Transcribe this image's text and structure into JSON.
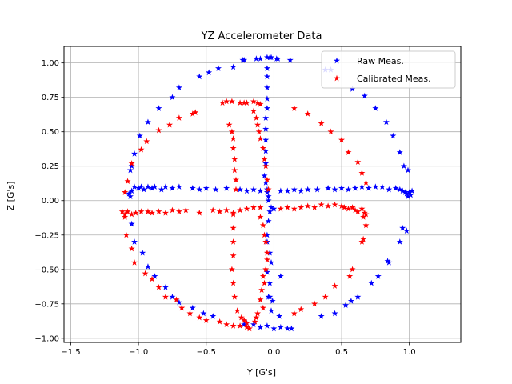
{
  "chart_data": {
    "type": "scatter",
    "title": "YZ Accelerometer Data",
    "xlabel": "Y [G's]",
    "ylabel": "Z [G's]",
    "xlim": [
      -1.55,
      1.38
    ],
    "ylim": [
      -1.03,
      1.12
    ],
    "xticks": [
      -1.5,
      -1.0,
      -0.5,
      0.0,
      0.5,
      1.0
    ],
    "xtick_labels": [
      "−1.5",
      "−1.0",
      "−0.5",
      "0.0",
      "0.5",
      "1.0"
    ],
    "yticks": [
      -1.0,
      -0.75,
      -0.5,
      -0.25,
      0.0,
      0.25,
      0.5,
      0.75,
      1.0
    ],
    "ytick_labels": [
      "−1.00",
      "−0.75",
      "−0.50",
      "−0.25",
      "0.00",
      "0.25",
      "0.50",
      "0.75",
      "1.00"
    ],
    "grid": true,
    "legend_position": "top-right",
    "marker": "star",
    "series": [
      {
        "name": "Raw Meas.",
        "color": "#0000ff",
        "points": [
          [
            -0.23,
            1.02
          ],
          [
            -0.22,
            1.02
          ],
          [
            -0.13,
            1.03
          ],
          [
            -0.1,
            1.03
          ],
          [
            -0.05,
            1.04
          ],
          [
            -0.03,
            1.04
          ],
          [
            -0.02,
            1.04
          ],
          [
            0.02,
            1.03
          ],
          [
            0.03,
            1.03
          ],
          [
            0.12,
            1.02
          ],
          [
            -0.3,
            0.97
          ],
          [
            -0.41,
            0.96
          ],
          [
            -0.48,
            0.93
          ],
          [
            -0.55,
            0.9
          ],
          [
            -0.7,
            0.82
          ],
          [
            -0.75,
            0.75
          ],
          [
            -0.85,
            0.67
          ],
          [
            -0.93,
            0.57
          ],
          [
            -0.99,
            0.47
          ],
          [
            -1.03,
            0.34
          ],
          [
            -1.05,
            0.25
          ],
          [
            -1.06,
            0.22
          ],
          [
            0.38,
            0.95
          ],
          [
            0.42,
            0.95
          ],
          [
            0.58,
            0.81
          ],
          [
            0.67,
            0.76
          ],
          [
            0.75,
            0.67
          ],
          [
            0.83,
            0.57
          ],
          [
            0.88,
            0.47
          ],
          [
            0.93,
            0.35
          ],
          [
            0.96,
            0.25
          ],
          [
            0.99,
            0.22
          ],
          [
            -0.05,
            0.96
          ],
          [
            -0.05,
            0.9
          ],
          [
            -0.05,
            0.82
          ],
          [
            -0.05,
            0.74
          ],
          [
            -0.05,
            0.67
          ],
          [
            -0.06,
            0.6
          ],
          [
            -0.06,
            0.52
          ],
          [
            -0.06,
            0.44
          ],
          [
            -0.06,
            0.36
          ],
          [
            -0.06,
            0.27
          ],
          [
            -0.07,
            0.18
          ],
          [
            -0.06,
            0.13
          ],
          [
            -0.05,
            0.08
          ],
          [
            -0.05,
            0.06
          ],
          [
            -0.04,
            0.03
          ],
          [
            -0.04,
            0.0
          ],
          [
            -1.0,
            0.09
          ],
          [
            -0.98,
            0.1
          ],
          [
            -0.96,
            0.08
          ],
          [
            -0.93,
            0.1
          ],
          [
            -0.9,
            0.09
          ],
          [
            -0.88,
            0.1
          ],
          [
            -0.83,
            0.08
          ],
          [
            -0.8,
            0.1
          ],
          [
            -0.75,
            0.09
          ],
          [
            -0.7,
            0.1
          ],
          [
            -0.6,
            0.09
          ],
          [
            -0.55,
            0.08
          ],
          [
            -0.5,
            0.09
          ],
          [
            -0.43,
            0.08
          ],
          [
            -0.35,
            0.09
          ],
          [
            -0.25,
            0.08
          ],
          [
            -0.2,
            0.07
          ],
          [
            -0.15,
            0.08
          ],
          [
            -0.1,
            0.07
          ],
          [
            0.05,
            0.07
          ],
          [
            0.1,
            0.07
          ],
          [
            0.15,
            0.08
          ],
          [
            0.2,
            0.07
          ],
          [
            0.25,
            0.08
          ],
          [
            0.32,
            0.08
          ],
          [
            0.4,
            0.09
          ],
          [
            0.45,
            0.08
          ],
          [
            0.5,
            0.09
          ],
          [
            0.55,
            0.08
          ],
          [
            0.6,
            0.09
          ],
          [
            0.65,
            0.1
          ],
          [
            0.7,
            0.09
          ],
          [
            0.75,
            0.1
          ],
          [
            0.8,
            0.1
          ],
          [
            0.85,
            0.08
          ],
          [
            0.9,
            0.09
          ],
          [
            0.93,
            0.08
          ],
          [
            0.95,
            0.07
          ],
          [
            0.97,
            0.06
          ],
          [
            0.98,
            0.05
          ],
          [
            1.0,
            0.06
          ],
          [
            1.02,
            0.07
          ],
          [
            1.01,
            0.04
          ],
          [
            0.99,
            0.03
          ],
          [
            -1.05,
            0.07
          ],
          [
            -1.07,
            0.05
          ],
          [
            -1.06,
            0.03
          ],
          [
            -1.03,
            0.1
          ],
          [
            -1.05,
            -0.17
          ],
          [
            -1.03,
            -0.3
          ],
          [
            -0.97,
            -0.38
          ],
          [
            -0.93,
            -0.48
          ],
          [
            -0.88,
            -0.55
          ],
          [
            -0.8,
            -0.63
          ],
          [
            -0.75,
            -0.7
          ],
          [
            -0.7,
            -0.74
          ],
          [
            -0.6,
            -0.78
          ],
          [
            -0.52,
            -0.82
          ],
          [
            -0.45,
            -0.84
          ],
          [
            0.95,
            -0.2
          ],
          [
            0.98,
            -0.22
          ],
          [
            0.93,
            -0.3
          ],
          [
            0.85,
            -0.45
          ],
          [
            0.84,
            -0.44
          ],
          [
            0.77,
            -0.55
          ],
          [
            0.72,
            -0.6
          ],
          [
            0.62,
            -0.7
          ],
          [
            0.57,
            -0.73
          ],
          [
            0.53,
            -0.76
          ],
          [
            0.45,
            -0.82
          ],
          [
            0.35,
            -0.84
          ],
          [
            0.1,
            -0.93
          ],
          [
            0.13,
            -0.93
          ],
          [
            0.05,
            -0.92
          ],
          [
            0.0,
            -0.93
          ],
          [
            -0.05,
            -0.91
          ],
          [
            -0.1,
            -0.92
          ],
          [
            -0.15,
            -0.9
          ],
          [
            -0.2,
            -0.89
          ],
          [
            -0.22,
            -0.9
          ],
          [
            -0.02,
            -0.8
          ],
          [
            -0.04,
            -0.7
          ],
          [
            -0.03,
            -0.6
          ],
          [
            -0.05,
            -0.52
          ],
          [
            -0.02,
            -0.45
          ],
          [
            -0.03,
            -0.38
          ],
          [
            -0.05,
            -0.3
          ],
          [
            -0.05,
            -0.25
          ],
          [
            -0.04,
            -0.15
          ],
          [
            -0.03,
            -0.08
          ],
          [
            -0.02,
            -0.05
          ],
          [
            0.0,
            -0.06
          ],
          [
            0.04,
            -0.84
          ],
          [
            0.05,
            -0.55
          ],
          [
            -0.01,
            -0.73
          ],
          [
            -0.03,
            -0.7
          ]
        ]
      },
      {
        "name": "Calibrated Meas.",
        "color": "#ff0000",
        "points": [
          [
            -0.38,
            0.71
          ],
          [
            -0.35,
            0.72
          ],
          [
            -0.31,
            0.72
          ],
          [
            -0.25,
            0.71
          ],
          [
            -0.22,
            0.71
          ],
          [
            -0.2,
            0.71
          ],
          [
            -0.15,
            0.72
          ],
          [
            -0.12,
            0.71
          ],
          [
            -0.1,
            0.7
          ],
          [
            -0.58,
            0.64
          ],
          [
            -0.6,
            0.63
          ],
          [
            -0.7,
            0.6
          ],
          [
            -0.77,
            0.55
          ],
          [
            -0.85,
            0.51
          ],
          [
            -0.94,
            0.43
          ],
          [
            -0.98,
            0.37
          ],
          [
            -1.05,
            0.27
          ],
          [
            -1.08,
            0.14
          ],
          [
            -1.1,
            0.06
          ],
          [
            0.15,
            0.67
          ],
          [
            0.25,
            0.63
          ],
          [
            0.35,
            0.56
          ],
          [
            0.42,
            0.5
          ],
          [
            0.5,
            0.44
          ],
          [
            0.55,
            0.35
          ],
          [
            0.62,
            0.28
          ],
          [
            0.65,
            0.2
          ],
          [
            0.68,
            0.13
          ],
          [
            -0.33,
            0.55
          ],
          [
            -0.31,
            0.5
          ],
          [
            -0.3,
            0.45
          ],
          [
            -0.3,
            0.38
          ],
          [
            -0.29,
            0.3
          ],
          [
            -0.29,
            0.22
          ],
          [
            -0.28,
            0.15
          ],
          [
            -0.28,
            0.08
          ],
          [
            -0.15,
            0.65
          ],
          [
            -0.13,
            0.6
          ],
          [
            -0.12,
            0.55
          ],
          [
            -0.11,
            0.5
          ],
          [
            -0.1,
            0.45
          ],
          [
            -0.08,
            0.38
          ],
          [
            -0.07,
            0.3
          ],
          [
            -0.06,
            0.25
          ],
          [
            -0.05,
            0.15
          ],
          [
            -0.04,
            0.08
          ],
          [
            -1.1,
            -0.1
          ],
          [
            -1.08,
            -0.08
          ],
          [
            -1.05,
            -0.1
          ],
          [
            -1.02,
            -0.09
          ],
          [
            -0.98,
            -0.08
          ],
          [
            -0.93,
            -0.08
          ],
          [
            -0.9,
            -0.09
          ],
          [
            -0.85,
            -0.08
          ],
          [
            -0.8,
            -0.09
          ],
          [
            -0.75,
            -0.07
          ],
          [
            -0.7,
            -0.08
          ],
          [
            -0.65,
            -0.07
          ],
          [
            -0.55,
            -0.09
          ],
          [
            -0.45,
            -0.07
          ],
          [
            -0.4,
            -0.08
          ],
          [
            -0.35,
            -0.07
          ],
          [
            -0.3,
            -0.09
          ],
          [
            -0.25,
            -0.07
          ],
          [
            -0.2,
            -0.06
          ],
          [
            -0.15,
            -0.05
          ],
          [
            -0.1,
            -0.05
          ],
          [
            0.05,
            -0.06
          ],
          [
            0.1,
            -0.05
          ],
          [
            0.15,
            -0.06
          ],
          [
            0.2,
            -0.05
          ],
          [
            0.25,
            -0.04
          ],
          [
            0.3,
            -0.05
          ],
          [
            0.35,
            -0.03
          ],
          [
            0.4,
            -0.04
          ],
          [
            0.45,
            -0.03
          ],
          [
            0.5,
            -0.04
          ],
          [
            0.52,
            -0.05
          ],
          [
            0.55,
            -0.06
          ],
          [
            0.58,
            -0.05
          ],
          [
            0.6,
            -0.07
          ],
          [
            0.62,
            -0.08
          ],
          [
            0.65,
            -0.06
          ],
          [
            0.67,
            -0.09
          ],
          [
            0.68,
            -0.1
          ],
          [
            0.66,
            -0.12
          ],
          [
            -1.12,
            -0.08
          ],
          [
            -1.1,
            -0.12
          ],
          [
            -1.09,
            -0.25
          ],
          [
            -1.05,
            -0.35
          ],
          [
            -1.03,
            -0.45
          ],
          [
            -0.95,
            -0.53
          ],
          [
            -0.9,
            -0.57
          ],
          [
            -0.85,
            -0.63
          ],
          [
            -0.8,
            -0.7
          ],
          [
            -0.72,
            -0.72
          ],
          [
            -0.68,
            -0.78
          ],
          [
            -0.62,
            -0.82
          ],
          [
            -0.55,
            -0.85
          ],
          [
            -0.5,
            -0.87
          ],
          [
            0.68,
            -0.18
          ],
          [
            0.66,
            -0.28
          ],
          [
            0.65,
            -0.3
          ],
          [
            0.58,
            -0.5
          ],
          [
            0.56,
            -0.55
          ],
          [
            0.45,
            -0.62
          ],
          [
            0.38,
            -0.7
          ],
          [
            0.3,
            -0.75
          ],
          [
            0.2,
            -0.79
          ],
          [
            0.15,
            -0.82
          ],
          [
            -0.4,
            -0.88
          ],
          [
            -0.35,
            -0.9
          ],
          [
            -0.3,
            -0.91
          ],
          [
            -0.25,
            -0.91
          ],
          [
            -0.2,
            -0.92
          ],
          [
            -0.18,
            -0.93
          ],
          [
            -0.2,
            -0.89
          ],
          [
            -0.22,
            -0.87
          ],
          [
            -0.3,
            -0.1
          ],
          [
            -0.3,
            -0.2
          ],
          [
            -0.3,
            -0.3
          ],
          [
            -0.3,
            -0.4
          ],
          [
            -0.31,
            -0.5
          ],
          [
            -0.3,
            -0.6
          ],
          [
            -0.29,
            -0.7
          ],
          [
            -0.27,
            -0.8
          ],
          [
            -0.24,
            -0.85
          ],
          [
            -0.1,
            -0.12
          ],
          [
            -0.08,
            -0.18
          ],
          [
            -0.07,
            -0.25
          ],
          [
            -0.06,
            -0.3
          ],
          [
            -0.05,
            -0.38
          ],
          [
            -0.05,
            -0.43
          ],
          [
            -0.06,
            -0.5
          ],
          [
            -0.08,
            -0.55
          ],
          [
            -0.07,
            -0.6
          ],
          [
            -0.09,
            -0.65
          ],
          [
            -0.1,
            -0.72
          ],
          [
            -0.08,
            -0.78
          ],
          [
            -0.12,
            -0.82
          ],
          [
            -0.13,
            -0.85
          ],
          [
            -0.14,
            -0.88
          ]
        ]
      }
    ]
  }
}
